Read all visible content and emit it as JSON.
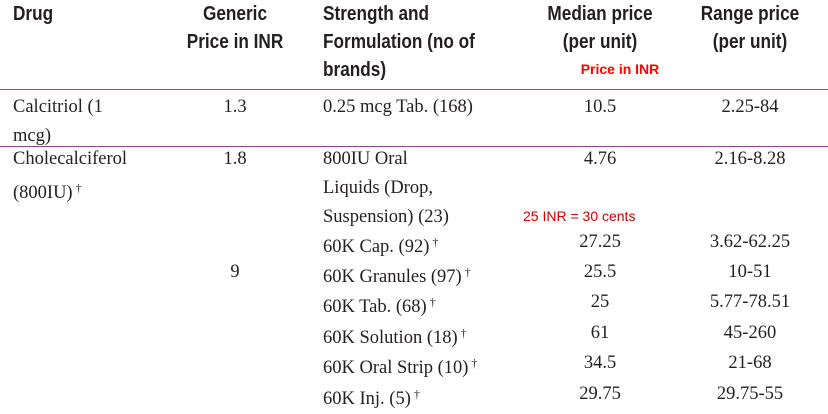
{
  "headers": {
    "drug": "Drug",
    "generic": [
      "Generic",
      "Price in INR"
    ],
    "strength": [
      "Strength and",
      "Formulation (no of",
      "brands)"
    ],
    "median": [
      "Median price",
      "(per unit)"
    ],
    "range": [
      "Range price",
      "(per unit)"
    ]
  },
  "annotations": {
    "price_in_inr": "Price in INR",
    "conversion": "25 INR = 30 cents"
  },
  "footnote_mark": "†",
  "rows": [
    {
      "drug": [
        "Calcitriol (1",
        "mcg)"
      ],
      "generic": "1.3",
      "strength": "0.25 mcg Tab. (168)",
      "median": "10.5",
      "range": "2.25-84"
    },
    {
      "drug": [
        "Cholecalciferol",
        "(800IU)"
      ],
      "generic": "1.8",
      "strength": [
        "800IU Oral",
        "Liquids (Drop,",
        "Suspension) (23)"
      ],
      "median": "4.76",
      "range": "2.16-8.28"
    },
    {
      "strength": "60K Cap. (92)",
      "median": "27.25",
      "range": "3.62-62.25"
    },
    {
      "generic": "9",
      "strength": "60K Granules (97)",
      "median": "25.5",
      "range": "10-51"
    },
    {
      "strength": "60K Tab. (68)",
      "median": "25",
      "range": "5.77-78.51"
    },
    {
      "strength": "60K Solution (18)",
      "median": "61",
      "range": "45-260"
    },
    {
      "strength": "60K Oral Strip (10)",
      "median": "34.5",
      "range": "21-68"
    },
    {
      "strength": "60K Inj. (5)",
      "median": "29.75",
      "range": "29.75-55"
    }
  ]
}
